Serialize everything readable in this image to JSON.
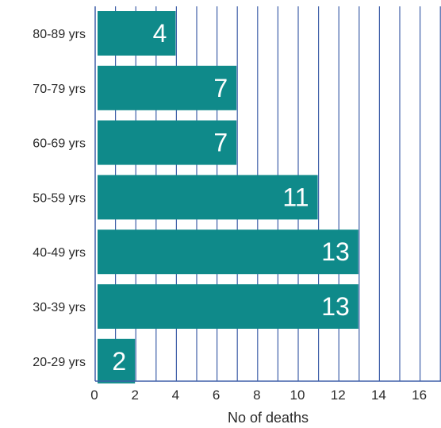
{
  "chart_data": {
    "type": "bar",
    "orientation": "horizontal",
    "categories": [
      "80-89 yrs",
      "70-79 yrs",
      "60-69 yrs",
      "50-59 yrs",
      "40-49 yrs",
      "30-39 yrs",
      "20-29 yrs"
    ],
    "values": [
      4,
      7,
      7,
      11,
      13,
      13,
      2
    ],
    "data_labels": [
      "4",
      "7",
      "7",
      "11",
      "13",
      "13",
      "2"
    ],
    "xlabel": "No of deaths",
    "ylabel": "",
    "xlim": [
      0,
      17
    ],
    "xticks": [
      "0",
      "2",
      "4",
      "6",
      "8",
      "10",
      "12",
      "14",
      "16"
    ],
    "grid": "vertical",
    "legend": "none",
    "colors": {
      "bar": "#0f8a8a",
      "grid": "#3f5fa8",
      "axis": "#3f5fa8",
      "bar_label": "#ffffff"
    }
  }
}
